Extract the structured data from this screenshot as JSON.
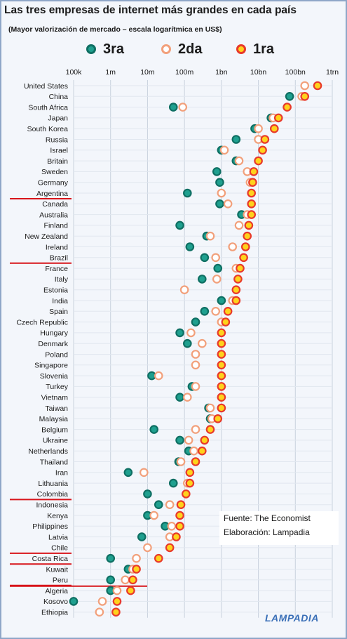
{
  "header": {
    "title": "Las tres empresas de internet más grandes en cada país",
    "subtitle": "(Mayor valorización de mercado – escala logarítmica en US$)"
  },
  "legend": [
    {
      "label": "3ra",
      "key": "tercera"
    },
    {
      "label": "2da",
      "key": "segunda"
    },
    {
      "label": "1ra",
      "key": "primera"
    }
  ],
  "colors": {
    "tercera_fill": "#1fa08f",
    "tercera_stroke": "#0f6f63",
    "segunda_fill": "#ffffff",
    "segunda_stroke": "#f2a07b",
    "primera_fill": "#ffd21c",
    "primera_stroke": "#e8392b",
    "highlight_line": "#d8141a",
    "gridline": "#c9d2de",
    "logo": "#3a6fb7"
  },
  "source": {
    "line1": "Fuente: The Economist",
    "line2": "Elaboración: Lampadia"
  },
  "logo_text": "LAMPADIA",
  "chart_data": {
    "type": "scatter",
    "scale": "log",
    "x_unit": "US$",
    "xlim": [
      100000,
      1000000000000
    ],
    "x_ticks": [
      {
        "label": "100k",
        "value": 100000
      },
      {
        "label": "1m",
        "value": 1000000
      },
      {
        "label": "10m",
        "value": 10000000
      },
      {
        "label": "100m",
        "value": 100000000
      },
      {
        "label": "1bn",
        "value": 1000000000
      },
      {
        "label": "10bn",
        "value": 10000000000
      },
      {
        "label": "100bn",
        "value": 100000000000
      },
      {
        "label": "1trn",
        "value": 1000000000000
      }
    ],
    "grid": "vertical",
    "legend_position": "top",
    "highlighted_countries": [
      "Argentina",
      "Brazil",
      "Colombia",
      "Chile",
      "Costa Rica",
      "Peru"
    ],
    "rows": [
      {
        "country": "United States",
        "primera": 400000000000,
        "segunda": 180000000000,
        "tercera": null
      },
      {
        "country": "China",
        "primera": 180000000000,
        "segunda": 150000000000,
        "tercera": 70000000000
      },
      {
        "country": "South Africa",
        "primera": 60000000000,
        "segunda": 90000000,
        "tercera": 50000000
      },
      {
        "country": "Japan",
        "primera": 35000000000,
        "segunda": 25000000000,
        "tercera": 22000000000
      },
      {
        "country": "South Korea",
        "primera": 27000000000,
        "segunda": 10000000000,
        "tercera": 8000000000
      },
      {
        "country": "Russia",
        "primera": 15000000000,
        "segunda": 10000000000,
        "tercera": 2500000000
      },
      {
        "country": "Israel",
        "primera": 13000000000,
        "segunda": 1200000000,
        "tercera": 1000000000
      },
      {
        "country": "Britain",
        "primera": 10000000000,
        "segunda": 3000000000,
        "tercera": 2500000000
      },
      {
        "country": "Sweden",
        "primera": 7500000000,
        "segunda": 5000000000,
        "tercera": 750000000
      },
      {
        "country": "Germany",
        "primera": 7000000000,
        "segunda": 6000000000,
        "tercera": 900000000
      },
      {
        "country": "Argentina",
        "primera": 6500000000,
        "segunda": 1000000000,
        "tercera": 120000000
      },
      {
        "country": "Canada",
        "primera": 6500000000,
        "segunda": 1500000000,
        "tercera": 900000000
      },
      {
        "country": "Australia",
        "primera": 6500000000,
        "segunda": 5000000000,
        "tercera": 3500000000
      },
      {
        "country": "Finland",
        "primera": 5500000000,
        "segunda": 3000000000,
        "tercera": 75000000
      },
      {
        "country": "New Zealand",
        "primera": 5000000000,
        "segunda": 500000000,
        "tercera": 400000000
      },
      {
        "country": "Ireland",
        "primera": 4500000000,
        "segunda": 2000000000,
        "tercera": 140000000
      },
      {
        "country": "Brazil",
        "primera": 4000000000,
        "segunda": 700000000,
        "tercera": 350000000
      },
      {
        "country": "France",
        "primera": 3200000000,
        "segunda": 2500000000,
        "tercera": 800000000
      },
      {
        "country": "Italy",
        "primera": 2800000000,
        "segunda": 750000000,
        "tercera": 300000000
      },
      {
        "country": "Estonia",
        "primera": 2500000000,
        "segunda": 100000000,
        "tercera": null
      },
      {
        "country": "India",
        "primera": 2500000000,
        "segunda": 2000000000,
        "tercera": 1000000000
      },
      {
        "country": "Spain",
        "primera": 1500000000,
        "segunda": 700000000,
        "tercera": 350000000
      },
      {
        "country": "Czech Republic",
        "primera": 1300000000,
        "segunda": 1000000000,
        "tercera": 200000000
      },
      {
        "country": "Hungary",
        "primera": 1000000000,
        "segunda": 150000000,
        "tercera": 75000000
      },
      {
        "country": "Denmark",
        "primera": 1000000000,
        "segunda": 300000000,
        "tercera": 120000000
      },
      {
        "country": "Poland",
        "primera": 1000000000,
        "segunda": 200000000,
        "tercera": null
      },
      {
        "country": "Singapore",
        "primera": 1000000000,
        "segunda": 200000000,
        "tercera": null
      },
      {
        "country": "Slovenia",
        "primera": 1000000000,
        "segunda": 20000000,
        "tercera": 13000000
      },
      {
        "country": "Turkey",
        "primera": 1000000000,
        "segunda": 200000000,
        "tercera": 160000000
      },
      {
        "country": "Vietnam",
        "primera": 1000000000,
        "segunda": 120000000,
        "tercera": 75000000
      },
      {
        "country": "Taiwan",
        "primera": 1000000000,
        "segunda": 500000000,
        "tercera": 450000000
      },
      {
        "country": "Malaysia",
        "primera": 800000000,
        "segunda": 550000000,
        "tercera": 500000000
      },
      {
        "country": "Belgium",
        "primera": 500000000,
        "segunda": 200000000,
        "tercera": 15000000
      },
      {
        "country": "Ukraine",
        "primera": 350000000,
        "segunda": 130000000,
        "tercera": 75000000
      },
      {
        "country": "Netherlands",
        "primera": 300000000,
        "segunda": 180000000,
        "tercera": 130000000
      },
      {
        "country": "Thailand",
        "primera": 200000000,
        "segunda": 80000000,
        "tercera": 70000000
      },
      {
        "country": "Iran",
        "primera": 140000000,
        "segunda": 8000000,
        "tercera": 3000000
      },
      {
        "country": "Lithuania",
        "primera": 140000000,
        "segunda": 120000000,
        "tercera": 50000000
      },
      {
        "country": "Colombia",
        "primera": 110000000,
        "segunda": null,
        "tercera": 10000000
      },
      {
        "country": "Indonesia",
        "primera": 80000000,
        "segunda": 40000000,
        "tercera": 20000000
      },
      {
        "country": "Kenya",
        "primera": 75000000,
        "segunda": 15000000,
        "tercera": 10000000
      },
      {
        "country": "Philippines",
        "primera": 75000000,
        "segunda": 45000000,
        "tercera": 30000000
      },
      {
        "country": "Latvia",
        "primera": 60000000,
        "segunda": 40000000,
        "tercera": 7000000
      },
      {
        "country": "Chile",
        "primera": 40000000,
        "segunda": 10000000,
        "tercera": null
      },
      {
        "country": "Costa Rica",
        "primera": 20000000,
        "segunda": 5000000,
        "tercera": 1000000
      },
      {
        "country": "Kuwait",
        "primera": 5000000,
        "segunda": 4000000,
        "tercera": 3000000
      },
      {
        "country": "Peru",
        "primera": 4000000,
        "segunda": 2500000,
        "tercera": 1000000
      },
      {
        "country": "Algeria",
        "primera": 3500000,
        "segunda": 1500000,
        "tercera": 1000000
      },
      {
        "country": "Kosovo",
        "primera": 1500000,
        "segunda": 600000,
        "tercera": 100000
      },
      {
        "country": "Ethiopia",
        "primera": 1400000,
        "segunda": 500000,
        "tercera": null
      }
    ]
  }
}
